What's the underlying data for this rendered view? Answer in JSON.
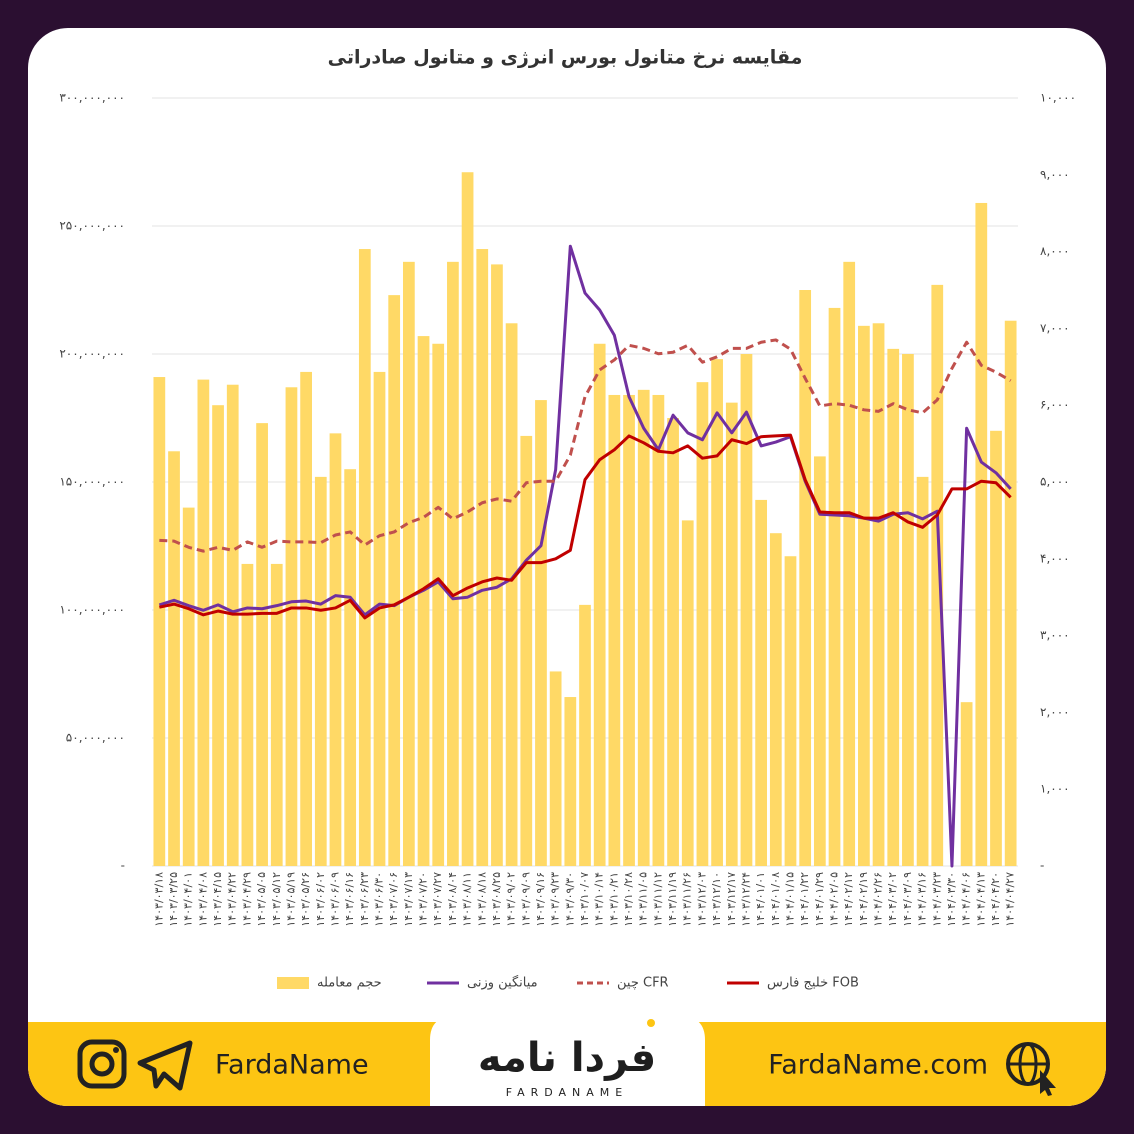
{
  "chart_data": {
    "type": "combo",
    "title": "مقایسه نرخ متانول بورس انرژی و متانول صادراتی",
    "categories": [
      "۱۴۰۳/۰۳/۱۸",
      "۱۴۰۳/۰۳/۲۵",
      "۱۴۰۳/۰۴/۰۱",
      "۱۴۰۳/۰۴/۰۸",
      "۱۴۰۳/۰۴/۱۵",
      "۱۴۰۳/۰۴/۲۲",
      "۱۴۰۳/۰۴/۲۹",
      "۱۴۰۳/۰۵/۰۵",
      "۱۴۰۳/۰۵/۱۲",
      "۱۴۰۳/۰۵/۱۹",
      "۱۴۰۳/۰۵/۲۶",
      "۱۴۰۳/۰۶/۰۲",
      "۱۴۰۳/۰۶/۰۹",
      "۱۴۰۳/۰۶/۱۶",
      "۱۴۰۳/۰۶/۲۳",
      "۱۴۰۳/۰۶/۳۰",
      "۱۴۰۳/۰۷/۰۶",
      "۱۴۰۳/۰۷/۱۳",
      "۱۴۰۳/۰۷/۲۰",
      "۱۴۰۳/۰۷/۲۷",
      "۱۴۰۳/۰۸/۰۴",
      "۱۴۰۳/۰۸/۱۱",
      "۱۴۰۳/۰۸/۱۸",
      "۱۴۰۳/۰۸/۲۵",
      "۱۴۰۳/۰۹/۰۲",
      "۱۴۰۳/۰۹/۰۹",
      "۱۴۰۳/۰۹/۱۶",
      "۱۴۰۳/۰۹/۲۳",
      "۱۴۰۳/۰۹/۳۰",
      "۱۴۰۳/۱۰/۰۷",
      "۱۴۰۳/۱۰/۱۴",
      "۱۴۰۳/۱۰/۲۱",
      "۱۴۰۳/۱۰/۲۸",
      "۱۴۰۳/۱۱/۰۵",
      "۱۴۰۳/۱۱/۱۲",
      "۱۴۰۳/۱۱/۱۹",
      "۱۴۰۳/۱۱/۲۶",
      "۱۴۰۳/۱۲/۰۳",
      "۱۴۰۳/۱۲/۱۰",
      "۱۴۰۳/۱۲/۱۷",
      "۱۴۰۳/۱۲/۲۴",
      "۱۴۰۴/۰۱/۰۱",
      "۱۴۰۴/۰۱/۰۸",
      "۱۴۰۴/۰۱/۱۵",
      "۱۴۰۴/۰۱/۲۲",
      "۱۴۰۴/۰۱/۲۹",
      "۱۴۰۴/۰۲/۰۵",
      "۱۴۰۴/۰۲/۱۲",
      "۱۴۰۴/۰۲/۱۹",
      "۱۴۰۴/۰۲/۲۶",
      "۱۴۰۴/۰۳/۰۲",
      "۱۴۰۴/۰۳/۰۹",
      "۱۴۰۴/۰۳/۱۶",
      "۱۴۰۴/۰۳/۲۳",
      "۱۴۰۴/۰۳/۳۰",
      "۱۴۰۴/۰۴/۰۶",
      "۱۴۰۴/۰۴/۱۳",
      "۱۴۰۴/۰۴/۲۰",
      "۱۴۰۴/۰۴/۲۷"
    ],
    "series": [
      {
        "name": "حجم معامله",
        "type": "bar",
        "color": "#ffd966",
        "axis": "y",
        "values": [
          191000000,
          162000000,
          140000000,
          190000000,
          180000000,
          188000000,
          118000000,
          173000000,
          118000000,
          187000000,
          193000000,
          152000000,
          169000000,
          155000000,
          241000000,
          193000000,
          223000000,
          236000000,
          207000000,
          204000000,
          236000000,
          271000000,
          241000000,
          235000000,
          212000000,
          168000000,
          182000000,
          76000000,
          66000000,
          102000000,
          204000000,
          184000000,
          184000000,
          186000000,
          184000000,
          175000000,
          135000000,
          189000000,
          198000000,
          181000000,
          200000000,
          143000000,
          130000000,
          121000000,
          225000000,
          160000000,
          218000000,
          236000000,
          211000000,
          212000000,
          202000000,
          200000000,
          152000000,
          227000000,
          0,
          64000000,
          259000000,
          170000000,
          213000000
        ]
      },
      {
        "name": "میانگین وزنی",
        "type": "line",
        "color": "#7030a0",
        "axis": "y2",
        "dashed": false,
        "values": [
          3400,
          3460,
          3390,
          3330,
          3400,
          3310,
          3360,
          3350,
          3390,
          3440,
          3450,
          3410,
          3520,
          3500,
          3270,
          3410,
          3390,
          3500,
          3590,
          3700,
          3480,
          3500,
          3590,
          3630,
          3740,
          3980,
          4170,
          5160,
          8070,
          7460,
          7240,
          6910,
          6110,
          5700,
          5420,
          5870,
          5640,
          5550,
          5900,
          5640,
          5910,
          5470,
          5520,
          5590,
          5010,
          4580,
          4570,
          4560,
          4530,
          4490,
          4580,
          4600,
          4520,
          4620,
          0,
          5700,
          5260,
          5120,
          4910
        ]
      },
      {
        "name": "چین CFR",
        "type": "line",
        "color": "#c0504d",
        "axis": "y2",
        "dashed": true,
        "values": [
          4240,
          4230,
          4150,
          4100,
          4150,
          4110,
          4220,
          4150,
          4230,
          4220,
          4220,
          4210,
          4310,
          4350,
          4180,
          4300,
          4350,
          4470,
          4540,
          4670,
          4520,
          4610,
          4730,
          4780,
          4750,
          4990,
          5010,
          5010,
          5350,
          6110,
          6460,
          6590,
          6780,
          6740,
          6670,
          6690,
          6780,
          6560,
          6630,
          6740,
          6740,
          6820,
          6850,
          6730,
          6350,
          5990,
          6020,
          6000,
          5940,
          5920,
          6020,
          5940,
          5900,
          6070,
          6480,
          6820,
          6520,
          6430,
          6320
        ]
      },
      {
        "name": "خلیج فارس FOB",
        "type": "line",
        "color": "#c00000",
        "axis": "y2",
        "dashed": false,
        "values": [
          3370,
          3410,
          3350,
          3270,
          3320,
          3280,
          3280,
          3290,
          3290,
          3360,
          3360,
          3330,
          3360,
          3460,
          3230,
          3360,
          3400,
          3500,
          3610,
          3740,
          3520,
          3620,
          3700,
          3750,
          3720,
          3950,
          3950,
          4000,
          4110,
          5030,
          5290,
          5420,
          5600,
          5510,
          5400,
          5380,
          5470,
          5310,
          5340,
          5550,
          5500,
          5590,
          5600,
          5610,
          5030,
          4610,
          4600,
          4600,
          4530,
          4530,
          4600,
          4480,
          4410,
          4570,
          4910,
          4910,
          5010,
          4990,
          4800
        ]
      }
    ],
    "ylim": [
      0,
      300000000
    ],
    "yticks": [
      {
        "value": 0,
        "label": "-"
      },
      {
        "value": 50000000,
        "label": "۵۰,۰۰۰,۰۰۰"
      },
      {
        "value": 100000000,
        "label": "۱۰۰,۰۰۰,۰۰۰"
      },
      {
        "value": 150000000,
        "label": "۱۵۰,۰۰۰,۰۰۰"
      },
      {
        "value": 200000000,
        "label": "۲۰۰,۰۰۰,۰۰۰"
      },
      {
        "value": 250000000,
        "label": "۲۵۰,۰۰۰,۰۰۰"
      },
      {
        "value": 300000000,
        "label": "۳۰۰,۰۰۰,۰۰۰"
      }
    ],
    "y2lim": [
      0,
      10000
    ],
    "y2ticks": [
      {
        "value": 0,
        "label": "-"
      },
      {
        "value": 1000,
        "label": "۱,۰۰۰"
      },
      {
        "value": 2000,
        "label": "۲,۰۰۰"
      },
      {
        "value": 3000,
        "label": "۳,۰۰۰"
      },
      {
        "value": 4000,
        "label": "۴,۰۰۰"
      },
      {
        "value": 5000,
        "label": "۵,۰۰۰"
      },
      {
        "value": 6000,
        "label": "۶,۰۰۰"
      },
      {
        "value": 7000,
        "label": "۷,۰۰۰"
      },
      {
        "value": 8000,
        "label": "۸,۰۰۰"
      },
      {
        "value": 9000,
        "label": "۹,۰۰۰"
      },
      {
        "value": 10000,
        "label": "۱۰,۰۰۰"
      }
    ],
    "grid": true,
    "legend": "bottom"
  },
  "footer": {
    "social_handle": "FardaName",
    "logo_text": "فردا نامه",
    "logo_subtext": "FARDANAME",
    "website": "FardaName.com"
  }
}
